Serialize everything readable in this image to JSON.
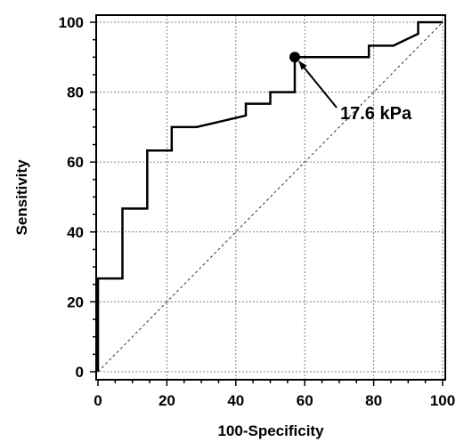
{
  "chart_data": {
    "type": "line",
    "title": "",
    "xlabel": "100-Specificity",
    "ylabel": "Sensitivity",
    "xlim": [
      0,
      100
    ],
    "ylim": [
      0,
      100
    ],
    "x_ticks": [
      0,
      20,
      40,
      60,
      80,
      100
    ],
    "y_ticks": [
      0,
      20,
      40,
      60,
      80,
      100
    ],
    "x_tick_labels": [
      "0",
      "20",
      "40",
      "60",
      "80",
      "100"
    ],
    "y_tick_labels": [
      "0",
      "20",
      "40",
      "60",
      "80",
      "100"
    ],
    "grid": true,
    "series": [
      {
        "style": "step",
        "points": [
          [
            0,
            0
          ],
          [
            0,
            26.7
          ],
          [
            7.1,
            26.7
          ],
          [
            7.1,
            46.7
          ],
          [
            14.3,
            46.7
          ],
          [
            14.3,
            63.3
          ],
          [
            21.4,
            63.3
          ],
          [
            21.4,
            70
          ],
          [
            28.6,
            70
          ],
          [
            42.9,
            73.3
          ],
          [
            42.9,
            76.7
          ],
          [
            50,
            76.7
          ],
          [
            50,
            80
          ],
          [
            57.1,
            80
          ],
          [
            57.1,
            90
          ],
          [
            78.6,
            90
          ],
          [
            78.6,
            93.3
          ],
          [
            85.7,
            93.3
          ],
          [
            92.9,
            96.7
          ],
          [
            92.9,
            100
          ],
          [
            100,
            100
          ]
        ]
      },
      {
        "style": "reference-diagonal",
        "points": [
          [
            0,
            0
          ],
          [
            100,
            100
          ]
        ]
      }
    ],
    "highlight_point": {
      "x": 57.1,
      "y": 90
    },
    "annotations": [
      {
        "text": "17.6 kPa",
        "points_to": {
          "x": 57.1,
          "y": 90
        }
      }
    ],
    "colors": {
      "line": "#000000",
      "grid": "#808080",
      "background": "#ffffff"
    }
  }
}
